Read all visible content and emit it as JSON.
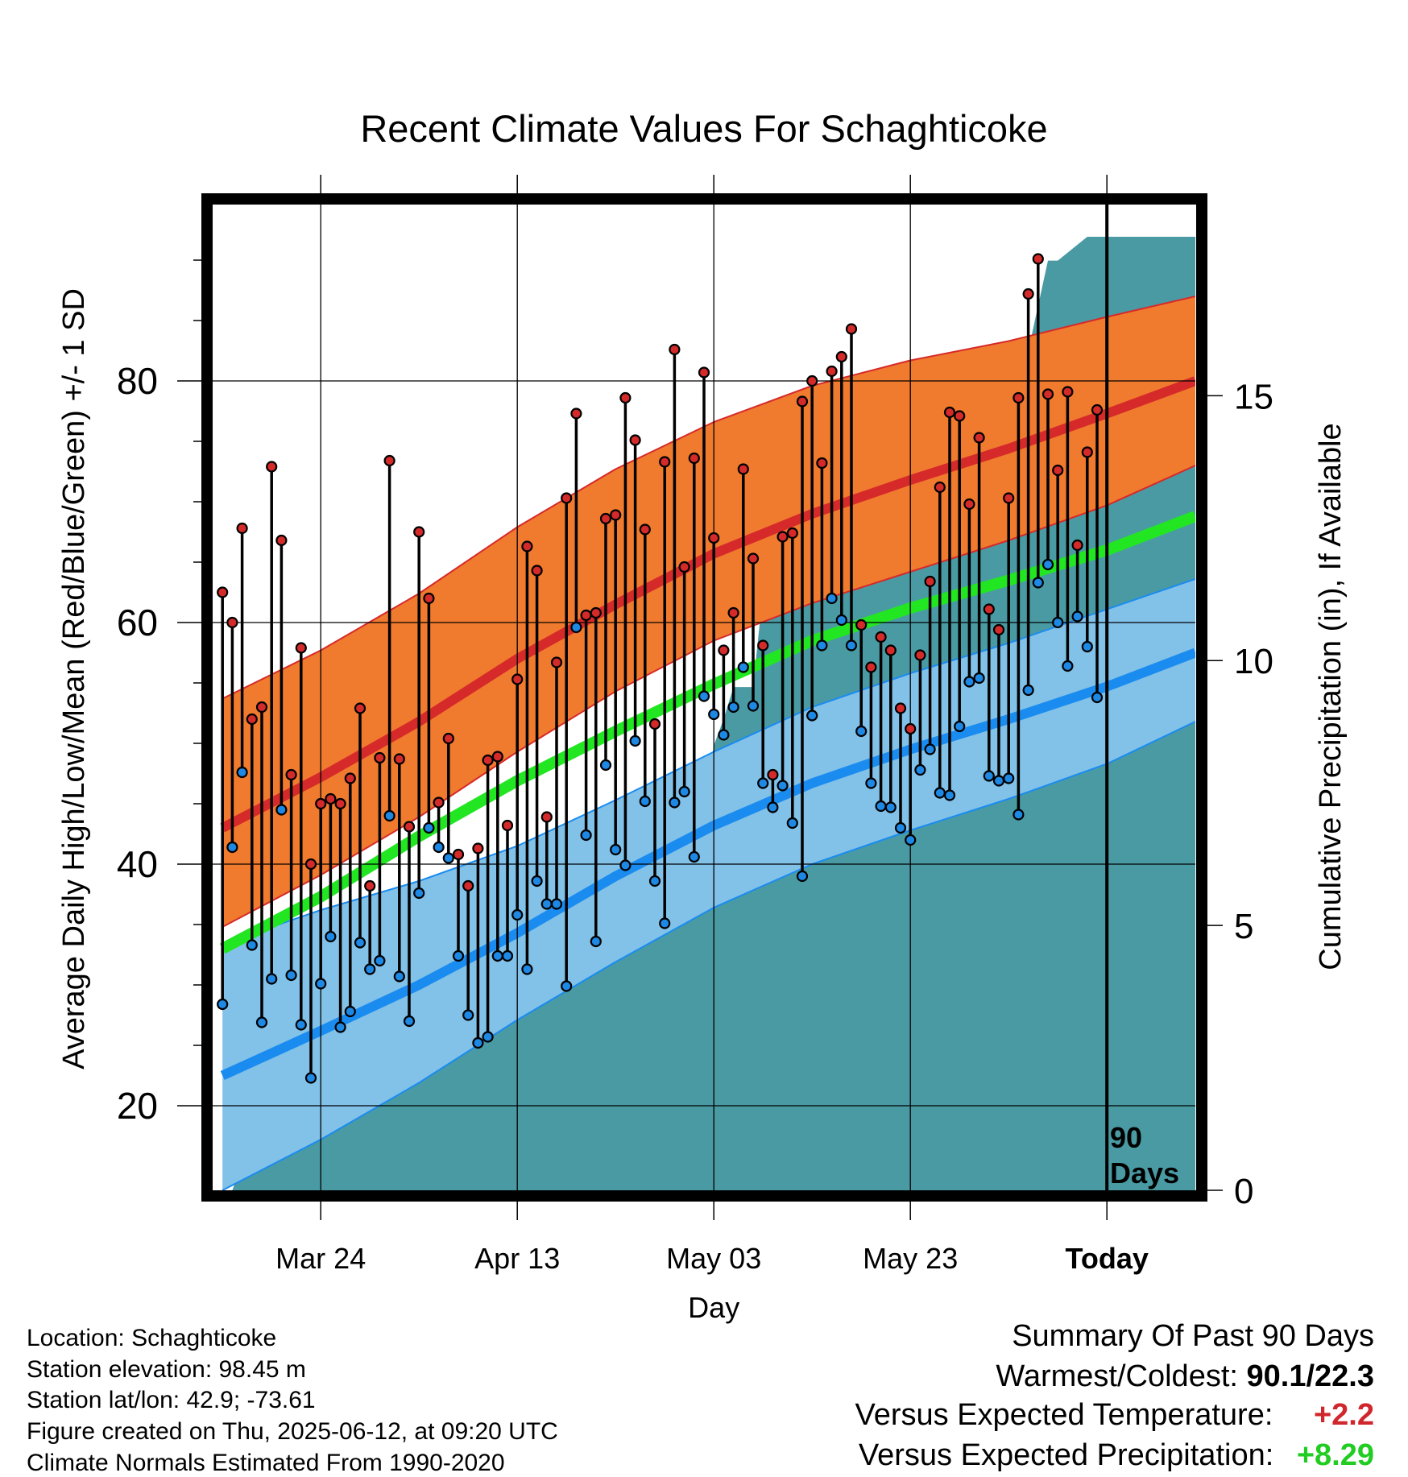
{
  "title": "Recent Climate Values For Schaghticoke",
  "info": {
    "location": "Location: Schaghticoke",
    "elevation": "Station elevation: 98.45 m",
    "latlon": "Station lat/lon: 42.9; -73.61",
    "created": "Figure created on Thu, 2025-06-12, at 09:20 UTC",
    "normals": "Climate Normals Estimated From 1990-2020"
  },
  "summary": {
    "heading": "Summary Of Past 90 Days",
    "warm_label": "Warmest/Coldest:",
    "warm_value": "90.1/22.3",
    "temp_label": "Versus Expected Temperature:",
    "temp_value": "+2.2",
    "precip_label": "Versus Expected Precipitation:",
    "precip_value": "+8.29"
  },
  "chart_data": {
    "type": "line",
    "title": "Recent Climate Values For Schaghticoke",
    "xlabel": "Day",
    "ylabel": "Average Daily High/Low/Mean (Red/Blue/Green) +/- 1 SD",
    "y2label": "Cumulative Precipitation (in), If Available",
    "ylim": [
      13,
      95
    ],
    "y2lim": [
      0,
      18.7
    ],
    "xlim": [
      -1,
      99
    ],
    "x_ticks": [
      {
        "day": 10,
        "label": "Mar 24"
      },
      {
        "day": 30,
        "label": "Apr 13"
      },
      {
        "day": 50,
        "label": "May 03"
      },
      {
        "day": 70,
        "label": "May 23"
      },
      {
        "day": 90,
        "label": "Today"
      }
    ],
    "y_ticks": [
      20,
      40,
      60,
      80
    ],
    "y2_ticks": [
      0,
      5,
      10,
      15
    ],
    "marker_label": "90 Days",
    "marker_day": 90,
    "grid": true,
    "colors": {
      "high_band": "#f07a2e",
      "high_line": "#d62a2a",
      "low_band": "#82c1e8",
      "low_line": "#1a8cf0",
      "mean_line": "#22e622",
      "precip": "#4a9aa4",
      "high_dot": "#d42a2a",
      "low_dot": "#1e88e5"
    },
    "normals": {
      "days": [
        0,
        10,
        20,
        30,
        40,
        50,
        60,
        70,
        80,
        90,
        99
      ],
      "high_mean": [
        43.0,
        47.2,
        51.8,
        57.0,
        61.5,
        65.7,
        69.0,
        71.8,
        74.4,
        77.3,
        80.0
      ],
      "high_upper": [
        53.7,
        57.7,
        62.4,
        67.9,
        72.7,
        76.6,
        79.6,
        81.7,
        83.3,
        85.3,
        87.0
      ],
      "high_lower": [
        34.8,
        39.1,
        43.9,
        49.3,
        54.3,
        58.5,
        61.6,
        64.2,
        66.8,
        69.7,
        73.0
      ],
      "mean": [
        33.0,
        37.3,
        42.3,
        46.9,
        51.0,
        54.9,
        58.5,
        61.2,
        63.5,
        66.0,
        68.8
      ],
      "low_mean": [
        22.5,
        26.2,
        30.0,
        34.3,
        39.0,
        43.2,
        46.7,
        49.5,
        52.0,
        54.7,
        57.5
      ],
      "low_upper": [
        33.4,
        36.2,
        38.6,
        41.5,
        45.3,
        49.3,
        53.0,
        55.8,
        58.3,
        61.1,
        63.6
      ],
      "low_lower": [
        13.0,
        17.2,
        21.9,
        27.1,
        31.9,
        36.4,
        40.0,
        42.8,
        45.4,
        48.3,
        51.8
      ]
    },
    "observed": {
      "high": [
        62.5,
        60.0,
        67.8,
        52.0,
        53.0,
        72.9,
        66.8,
        47.4,
        57.9,
        40.0,
        45.0,
        45.4,
        45.0,
        47.1,
        52.9,
        38.2,
        48.8,
        73.4,
        48.7,
        43.1,
        67.5,
        62.0,
        45.1,
        50.4,
        40.8,
        38.2,
        41.3,
        48.6,
        48.9,
        43.2,
        55.3,
        66.3,
        64.3,
        43.9,
        56.7,
        70.3,
        77.3,
        60.6,
        60.8,
        68.6,
        68.9,
        78.6,
        75.1,
        67.7,
        51.6,
        73.3,
        82.6,
        64.6,
        73.6,
        80.7,
        67.0,
        57.7,
        60.8,
        72.7,
        65.3,
        58.1,
        47.4,
        67.1,
        67.4,
        78.3,
        80.0,
        73.2,
        80.8,
        82.0,
        84.3,
        59.8,
        56.3,
        58.8,
        57.7,
        52.9,
        51.2,
        57.3,
        63.4,
        71.2,
        77.4,
        77.1,
        69.8,
        75.3,
        61.1,
        59.4,
        70.3,
        78.6,
        87.2,
        90.1,
        78.9,
        72.6,
        79.1,
        66.4,
        74.1,
        77.6
      ],
      "low": [
        28.4,
        41.4,
        47.6,
        33.3,
        26.9,
        30.5,
        44.5,
        30.8,
        26.7,
        22.3,
        30.1,
        34.0,
        26.5,
        27.8,
        33.5,
        31.3,
        32.0,
        44.0,
        30.7,
        27.0,
        37.6,
        43.0,
        41.4,
        40.5,
        32.4,
        27.5,
        25.2,
        25.7,
        32.4,
        32.4,
        35.8,
        31.3,
        38.6,
        36.7,
        36.7,
        29.9,
        59.6,
        42.4,
        33.6,
        48.2,
        41.2,
        39.9,
        50.2,
        45.2,
        38.6,
        35.1,
        45.1,
        46.0,
        40.6,
        53.9,
        52.4,
        50.7,
        53.0,
        56.3,
        53.1,
        46.7,
        44.7,
        46.5,
        43.4,
        39.0,
        52.3,
        58.1,
        62.0,
        60.2,
        58.1,
        51.0,
        46.7,
        44.8,
        44.7,
        43.0,
        42.0,
        47.8,
        49.5,
        45.9,
        45.7,
        51.4,
        55.1,
        55.4,
        47.3,
        46.9,
        47.1,
        44.1,
        54.4,
        63.3,
        64.8,
        60.0,
        56.4,
        60.5,
        58.0,
        53.8
      ]
    },
    "precipitation": {
      "days": [
        -1,
        1,
        2,
        4,
        6,
        8,
        10,
        12,
        14,
        16,
        18,
        20,
        21,
        23,
        25,
        27,
        29,
        30,
        32,
        34,
        36,
        38,
        40,
        42,
        44,
        46,
        48,
        49,
        50,
        51,
        52,
        54,
        55,
        56,
        58,
        60,
        62,
        63,
        65,
        67,
        69,
        71,
        73,
        76,
        77,
        80,
        82,
        84,
        85,
        86,
        88,
        90,
        99
      ],
      "inches": [
        0.0,
        0.0,
        0.5,
        1.1,
        1.15,
        1.25,
        1.25,
        1.25,
        1.75,
        1.75,
        2.75,
        3.35,
        3.35,
        3.55,
        3.65,
        4.05,
        4.5,
        4.55,
        4.55,
        4.6,
        4.8,
        4.8,
        5.45,
        5.6,
        6.3,
        6.3,
        6.5,
        7.1,
        8.4,
        8.9,
        9.5,
        9.5,
        11.3,
        11.9,
        11.9,
        11.9,
        12.5,
        12.5,
        12.55,
        12.75,
        12.8,
        12.85,
        12.85,
        15.6,
        15.6,
        15.6,
        15.85,
        17.55,
        17.55,
        17.7,
        18.0,
        18.0,
        18.0
      ]
    }
  }
}
